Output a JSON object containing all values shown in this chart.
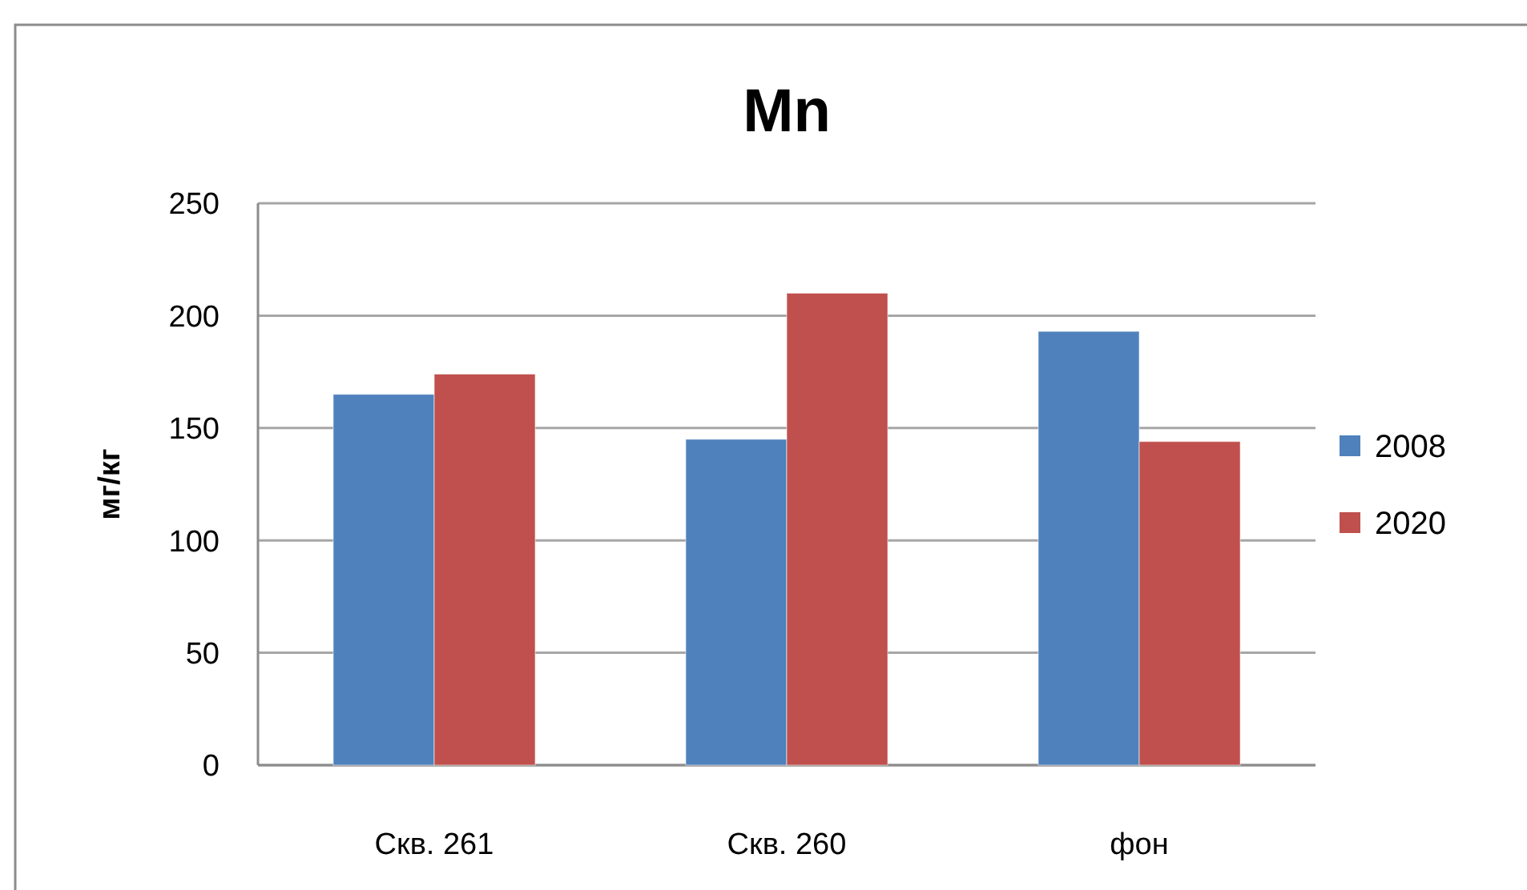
{
  "chart_data": {
    "type": "bar",
    "title": "Mn",
    "ylabel": "мг/кг",
    "categories": [
      "Скв. 261",
      "Скв. 260",
      "фон"
    ],
    "series": [
      {
        "name": "2008",
        "color": "#4f81bd",
        "values": [
          165,
          145,
          193
        ]
      },
      {
        "name": "2020",
        "color": "#c0504d",
        "values": [
          174,
          210,
          144
        ]
      }
    ],
    "ylim": [
      0,
      250
    ],
    "yticks": [
      0,
      50,
      100,
      150,
      200,
      250
    ],
    "grid": "y",
    "legend": "right"
  }
}
